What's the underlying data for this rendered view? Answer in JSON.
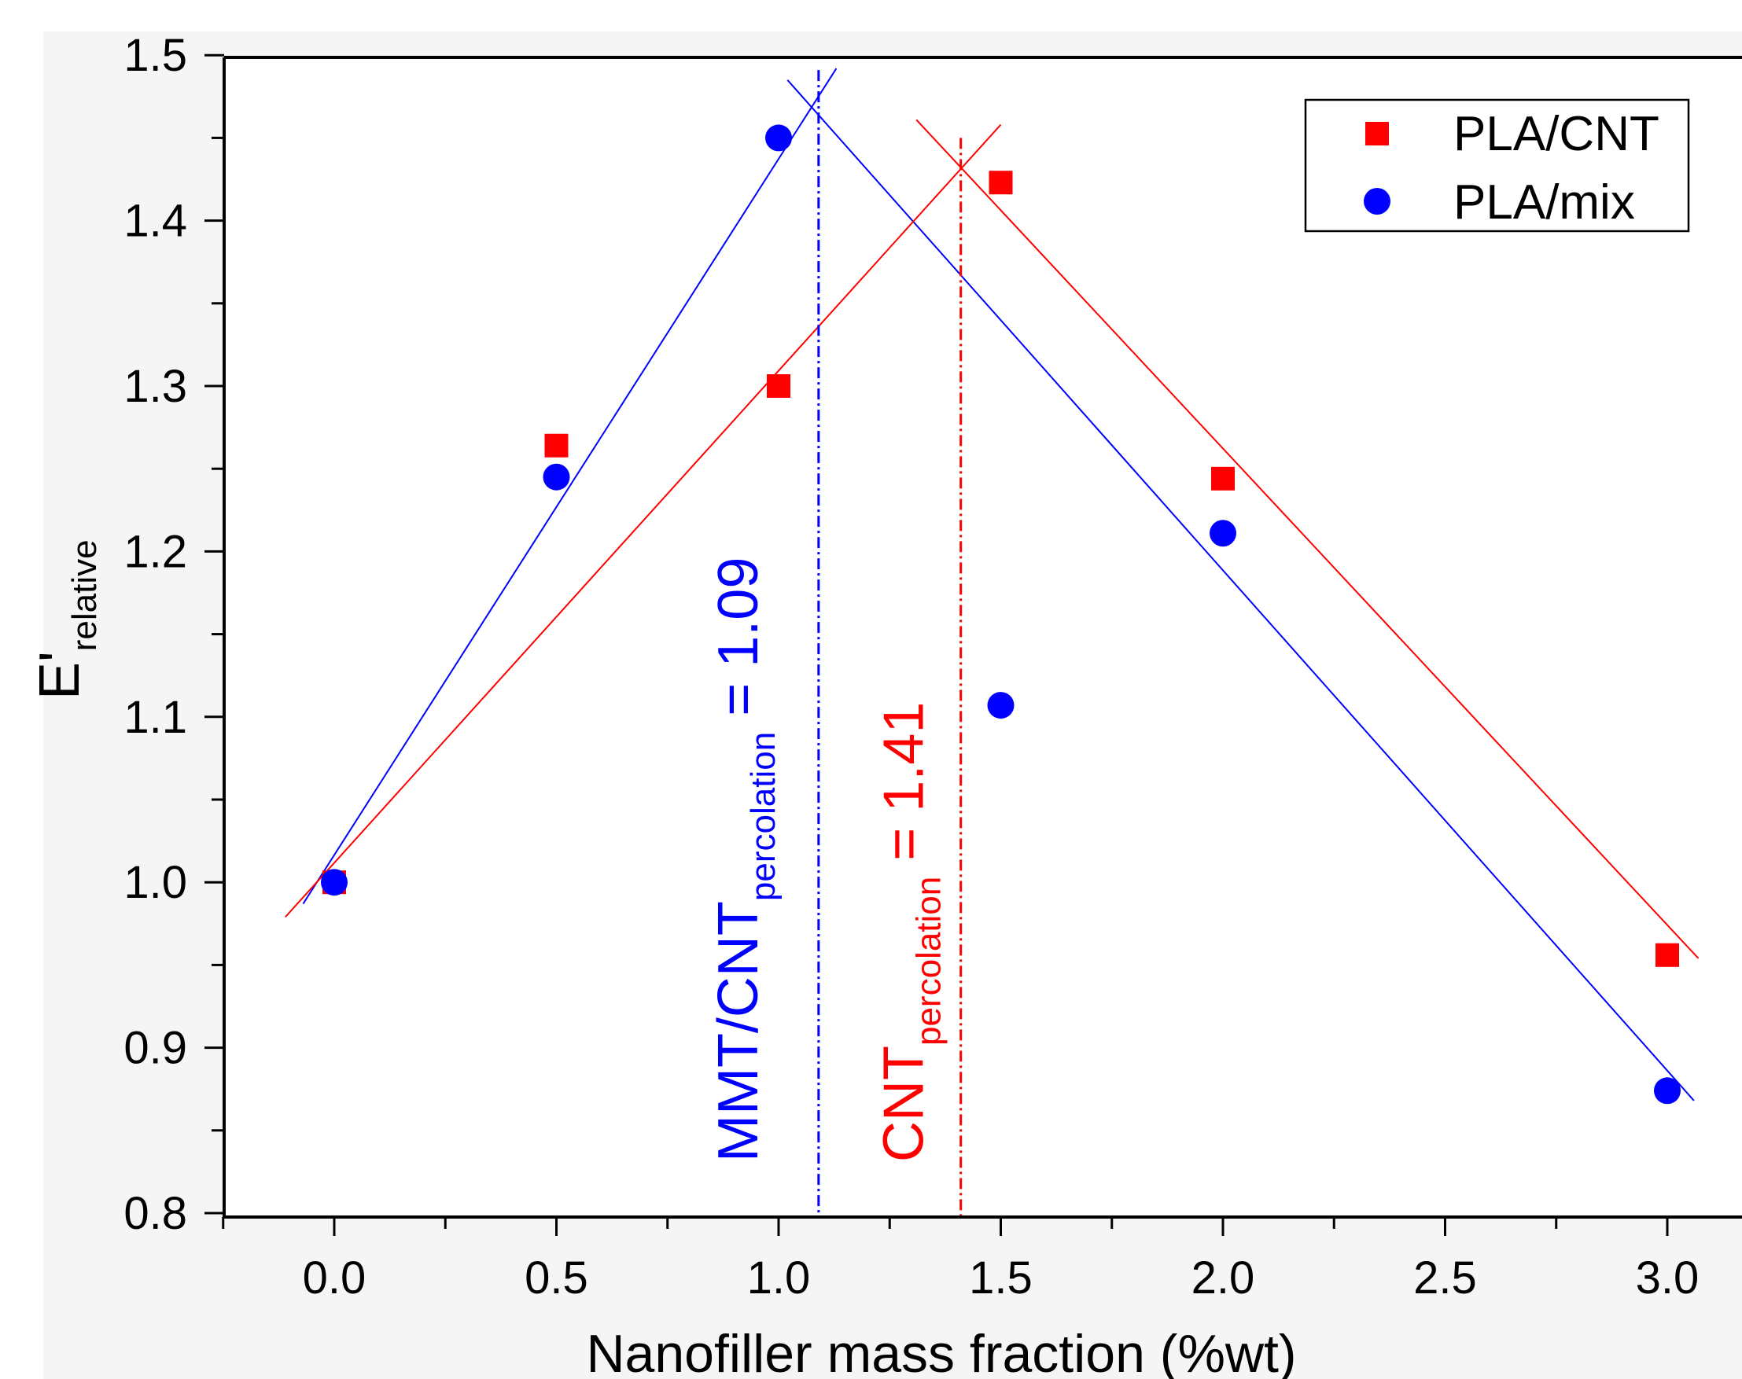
{
  "chart_data": {
    "type": "scatter",
    "xlabel": "Nanofiller mass fraction (%wt)",
    "ylabel_main": "E'",
    "ylabel_sub": "relative",
    "xlim": [
      -0.25,
      3.15
    ],
    "ylim": [
      0.8,
      1.5
    ],
    "x_ticks": [
      "0.0",
      "0.5",
      "1.0",
      "1.5",
      "2.0",
      "2.5",
      "3.0"
    ],
    "y_ticks": [
      "0.8",
      "0.9",
      "1.0",
      "1.1",
      "1.2",
      "1.3",
      "1.4",
      "1.5"
    ],
    "series": [
      {
        "name": "PLA/CNT",
        "marker": "square",
        "color": "#ff0000",
        "points": [
          [
            0.0,
            1.0
          ],
          [
            0.5,
            1.264
          ],
          [
            1.0,
            1.3
          ],
          [
            1.5,
            1.423
          ],
          [
            2.0,
            1.244
          ],
          [
            3.0,
            0.956
          ]
        ]
      },
      {
        "name": "PLA/mix",
        "marker": "circle",
        "color": "#0000ff",
        "points": [
          [
            0.0,
            1.0
          ],
          [
            0.5,
            1.245
          ],
          [
            1.0,
            1.45
          ],
          [
            1.5,
            1.107
          ],
          [
            2.0,
            1.211
          ],
          [
            3.0,
            0.874
          ]
        ]
      }
    ],
    "fit_lines": [
      {
        "color": "#0000ff",
        "from": [
          -0.07,
          0.987
        ],
        "to": [
          1.13,
          1.492
        ]
      },
      {
        "color": "#0000ff",
        "from": [
          1.02,
          1.485
        ],
        "to": [
          3.06,
          0.868
        ]
      },
      {
        "color": "#ff0000",
        "from": [
          -0.11,
          0.979
        ],
        "to": [
          1.5,
          1.458
        ]
      },
      {
        "color": "#ff0000",
        "from": [
          1.31,
          1.461
        ],
        "to": [
          3.07,
          0.954
        ]
      }
    ],
    "annotations": [
      {
        "x": 1.09,
        "color": "#0000ff",
        "main": "MMT/CNT",
        "sub": "percolation",
        "rest": " = 1.09"
      },
      {
        "x": 1.41,
        "color": "#ff0000",
        "main": "CNT",
        "sub": "percolation",
        "rest": " = 1.41"
      }
    ],
    "legend_position": "top-right"
  }
}
